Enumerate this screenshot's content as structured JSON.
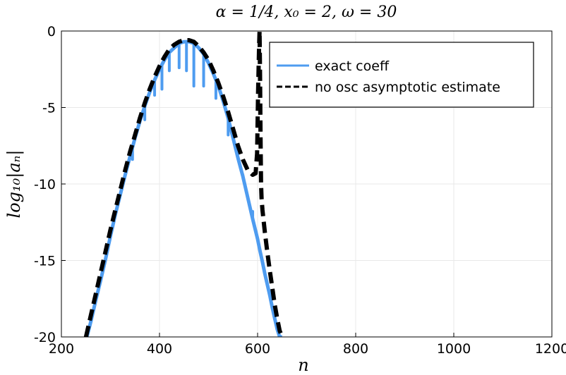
{
  "chart_data": {
    "type": "line",
    "title": "α = 1/4, x₀ = 2, ω = 30",
    "xlabel": "n",
    "ylabel": "log₁₀|aₙ|",
    "xlim": [
      200,
      1200
    ],
    "ylim": [
      -20,
      0
    ],
    "x_ticks": [
      {
        "value": 200,
        "label": "200"
      },
      {
        "value": 400,
        "label": "400"
      },
      {
        "value": 600,
        "label": "600"
      },
      {
        "value": 800,
        "label": "800"
      },
      {
        "value": 1000,
        "label": "1000"
      },
      {
        "value": 1200,
        "label": "1200"
      }
    ],
    "y_ticks": [
      {
        "value": 0,
        "label": "0"
      },
      {
        "value": -5,
        "label": "-5"
      },
      {
        "value": -10,
        "label": "-10"
      },
      {
        "value": -15,
        "label": "-15"
      },
      {
        "value": -20,
        "label": "-20"
      }
    ],
    "grid": true,
    "legend_position": "top-right",
    "series": [
      {
        "name": "exact coeff",
        "color": "#4e9cf0",
        "style": "solid",
        "x": [
          252,
          260,
          270,
          280,
          290,
          300,
          310,
          320,
          330,
          340,
          350,
          360,
          370,
          380,
          390,
          400,
          410,
          420,
          430,
          440,
          450,
          460,
          470,
          480,
          490,
          500,
          510,
          520,
          530,
          540,
          550,
          560,
          570,
          580,
          590,
          600,
          605,
          610,
          615,
          620,
          625,
          630,
          635,
          640,
          645,
          650
        ],
        "y": [
          -20.0,
          -19.0,
          -17.6,
          -16.3,
          -14.9,
          -13.4,
          -12.0,
          -10.7,
          -9.4,
          -8.2,
          -7.0,
          -5.9,
          -4.9,
          -4.0,
          -3.2,
          -2.5,
          -1.9,
          -1.4,
          -1.1,
          -0.8,
          -0.7,
          -0.7,
          -0.8,
          -1.1,
          -1.5,
          -2.1,
          -2.8,
          -3.6,
          -4.6,
          -5.7,
          -7.0,
          -8.3,
          -9.5,
          -10.9,
          -12.3,
          -13.6,
          -14.4,
          -15.1,
          -15.9,
          -16.6,
          -17.3,
          -18.1,
          -18.8,
          -19.5,
          -20.0,
          -20.0
        ],
        "dips": [
          {
            "x": 345,
            "y": -8.4
          },
          {
            "x": 370,
            "y": -5.8
          },
          {
            "x": 390,
            "y": -4.2
          },
          {
            "x": 405,
            "y": -3.8
          },
          {
            "x": 420,
            "y": -2.6
          },
          {
            "x": 440,
            "y": -2.4
          },
          {
            "x": 455,
            "y": -2.6
          },
          {
            "x": 470,
            "y": -3.6
          },
          {
            "x": 490,
            "y": -3.6
          },
          {
            "x": 515,
            "y": -4.4
          },
          {
            "x": 540,
            "y": -6.8
          },
          {
            "x": 570,
            "y": -9.4
          },
          {
            "x": 590,
            "y": -11.8
          }
        ]
      },
      {
        "name": "no osc asymptotic estimate",
        "color": "#000000",
        "style": "dashed",
        "x": [
          250,
          260,
          270,
          280,
          290,
          300,
          310,
          320,
          330,
          340,
          350,
          360,
          370,
          380,
          390,
          400,
          410,
          420,
          430,
          440,
          450,
          460,
          470,
          480,
          490,
          500,
          510,
          520,
          530,
          540,
          550,
          560,
          570,
          580,
          590,
          596,
          599,
          601,
          603,
          604,
          605,
          606,
          607,
          608,
          610,
          615,
          620,
          625,
          630,
          635,
          640,
          645,
          650
        ],
        "y": [
          -20.0,
          -18.6,
          -17.2,
          -15.8,
          -14.4,
          -13.0,
          -11.7,
          -10.4,
          -9.1,
          -7.9,
          -6.8,
          -5.7,
          -4.7,
          -3.8,
          -3.0,
          -2.3,
          -1.7,
          -1.2,
          -0.9,
          -0.7,
          -0.6,
          -0.6,
          -0.7,
          -1.0,
          -1.4,
          -1.9,
          -2.6,
          -3.4,
          -4.3,
          -5.3,
          -6.4,
          -7.5,
          -8.4,
          -9.1,
          -9.4,
          -9.3,
          -8.0,
          -4.0,
          -1.0,
          0.0,
          -3.0,
          -7.0,
          -10.0,
          -10.9,
          -11.7,
          -13.2,
          -14.5,
          -15.7,
          -16.8,
          -17.9,
          -18.8,
          -19.6,
          -20.0
        ]
      }
    ]
  }
}
